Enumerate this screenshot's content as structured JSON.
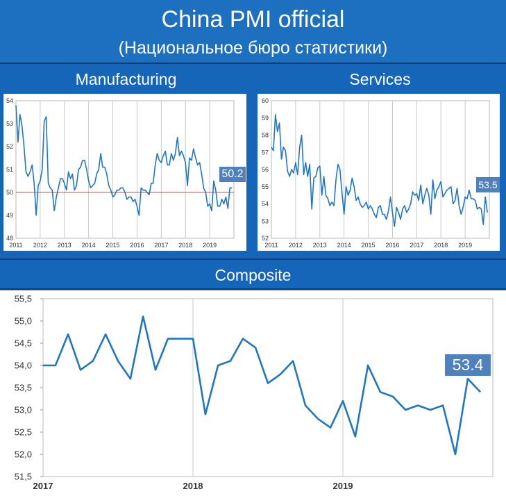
{
  "header": {
    "title": "China PMI official",
    "subtitle": "(Национальное бюро статистики)"
  },
  "sections": {
    "manufacturing": "Manufacturing",
    "services": "Services",
    "composite": "Composite"
  },
  "colors": {
    "background": "#1565b8",
    "line": "#1f77c4",
    "badge": "#4f81bd",
    "reference_line": "#c0504d"
  },
  "chart_data": [
    {
      "type": "line",
      "name": "manufacturing",
      "xlabels": [
        "2011",
        "2012",
        "2013",
        "2014",
        "2015",
        "2016",
        "2017",
        "2018",
        "2019"
      ],
      "xlim": [
        2011,
        2020
      ],
      "ylim": [
        48,
        54
      ],
      "yticks": [
        "48",
        "49",
        "50",
        "51",
        "52",
        "53",
        "54"
      ],
      "reference_y": 50,
      "latest_value": "50.2",
      "grid": "vertical",
      "x": [
        2011.0,
        2011.083,
        2011.167,
        2011.25,
        2011.333,
        2011.417,
        2011.5,
        2011.583,
        2011.667,
        2011.75,
        2011.833,
        2011.917,
        2012.0,
        2012.083,
        2012.167,
        2012.25,
        2012.333,
        2012.417,
        2012.5,
        2012.583,
        2012.667,
        2012.75,
        2012.833,
        2012.917,
        2013.0,
        2013.083,
        2013.167,
        2013.25,
        2013.333,
        2013.417,
        2013.5,
        2013.583,
        2013.667,
        2013.75,
        2013.833,
        2013.917,
        2014.0,
        2014.083,
        2014.167,
        2014.25,
        2014.333,
        2014.417,
        2014.5,
        2014.583,
        2014.667,
        2014.75,
        2014.833,
        2014.917,
        2015.0,
        2015.083,
        2015.167,
        2015.25,
        2015.333,
        2015.417,
        2015.5,
        2015.583,
        2015.667,
        2015.75,
        2015.833,
        2015.917,
        2016.0,
        2016.083,
        2016.167,
        2016.25,
        2016.333,
        2016.417,
        2016.5,
        2016.583,
        2016.667,
        2016.75,
        2016.833,
        2016.917,
        2017.0,
        2017.083,
        2017.167,
        2017.25,
        2017.333,
        2017.417,
        2017.5,
        2017.583,
        2017.667,
        2017.75,
        2017.833,
        2017.917,
        2018.0,
        2018.083,
        2018.167,
        2018.25,
        2018.333,
        2018.417,
        2018.5,
        2018.583,
        2018.667,
        2018.75,
        2018.833,
        2018.917,
        2019.0,
        2019.083,
        2019.167,
        2019.25,
        2019.333,
        2019.417,
        2019.5,
        2019.583,
        2019.667,
        2019.75,
        2019.833,
        2019.917
      ],
      "values": [
        53.8,
        52.2,
        53.4,
        52.9,
        52.0,
        50.9,
        50.7,
        50.9,
        51.2,
        50.4,
        49.0,
        50.3,
        50.5,
        51.0,
        53.1,
        53.3,
        50.4,
        50.2,
        50.1,
        49.2,
        49.8,
        50.2,
        50.6,
        50.6,
        50.4,
        50.1,
        50.9,
        50.6,
        50.8,
        50.1,
        50.3,
        51.0,
        51.1,
        51.4,
        51.4,
        51.0,
        50.5,
        50.2,
        50.3,
        50.4,
        50.8,
        51.0,
        51.7,
        51.1,
        51.1,
        50.8,
        50.3,
        50.1,
        49.8,
        49.9,
        50.1,
        50.1,
        50.2,
        50.2,
        50.0,
        49.7,
        49.8,
        49.8,
        49.6,
        49.7,
        49.4,
        49.0,
        50.2,
        50.1,
        50.1,
        50.0,
        49.9,
        50.4,
        50.4,
        51.2,
        51.7,
        51.4,
        51.3,
        51.6,
        51.8,
        51.2,
        51.2,
        51.7,
        51.4,
        51.7,
        52.4,
        51.6,
        51.8,
        51.6,
        51.3,
        50.3,
        51.5,
        51.4,
        51.9,
        51.5,
        51.2,
        51.3,
        50.8,
        50.2,
        50.0,
        49.4,
        49.5,
        49.2,
        50.5,
        50.1,
        49.4,
        49.4,
        49.7,
        49.5,
        49.8,
        49.3,
        50.2,
        50.2
      ]
    },
    {
      "type": "line",
      "name": "services",
      "xlabels": [
        "2011",
        "2012",
        "2013",
        "2014",
        "2015",
        "2016",
        "2017",
        "2018",
        "2019"
      ],
      "xlim": [
        2011,
        2020
      ],
      "ylim": [
        52,
        60
      ],
      "yticks": [
        "52",
        "53",
        "54",
        "55",
        "56",
        "57",
        "58",
        "59",
        "60"
      ],
      "latest_value": "53.5",
      "grid": "vertical",
      "x": [
        2011.0,
        2011.083,
        2011.167,
        2011.25,
        2011.333,
        2011.417,
        2011.5,
        2011.583,
        2011.667,
        2011.75,
        2011.833,
        2011.917,
        2012.0,
        2012.083,
        2012.167,
        2012.25,
        2012.333,
        2012.417,
        2012.5,
        2012.583,
        2012.667,
        2012.75,
        2012.833,
        2012.917,
        2013.0,
        2013.083,
        2013.167,
        2013.25,
        2013.333,
        2013.417,
        2013.5,
        2013.583,
        2013.667,
        2013.75,
        2013.833,
        2013.917,
        2014.0,
        2014.083,
        2014.167,
        2014.25,
        2014.333,
        2014.417,
        2014.5,
        2014.583,
        2014.667,
        2014.75,
        2014.833,
        2014.917,
        2015.0,
        2015.083,
        2015.167,
        2015.25,
        2015.333,
        2015.417,
        2015.5,
        2015.583,
        2015.667,
        2015.75,
        2015.833,
        2015.917,
        2016.0,
        2016.083,
        2016.167,
        2016.25,
        2016.333,
        2016.417,
        2016.5,
        2016.583,
        2016.667,
        2016.75,
        2016.833,
        2016.917,
        2017.0,
        2017.083,
        2017.167,
        2017.25,
        2017.333,
        2017.417,
        2017.5,
        2017.583,
        2017.667,
        2017.75,
        2017.833,
        2017.917,
        2018.0,
        2018.083,
        2018.167,
        2018.25,
        2018.333,
        2018.417,
        2018.5,
        2018.583,
        2018.667,
        2018.75,
        2018.833,
        2018.917,
        2019.0,
        2019.083,
        2019.167,
        2019.25,
        2019.333,
        2019.417,
        2019.5,
        2019.583,
        2019.667,
        2019.75,
        2019.833,
        2019.917
      ],
      "values": [
        57.3,
        57.1,
        59.2,
        58.2,
        58.7,
        56.6,
        57.3,
        57.1,
        55.9,
        55.6,
        56.0,
        55.8,
        56.4,
        55.7,
        57.3,
        58.0,
        55.7,
        56.4,
        55.6,
        56.3,
        53.7,
        55.5,
        55.6,
        56.1,
        56.2,
        54.5,
        55.6,
        54.5,
        54.3,
        53.9,
        54.1,
        53.9,
        55.4,
        56.3,
        56.0,
        54.6,
        53.4,
        55.0,
        54.5,
        54.8,
        55.5,
        55.0,
        54.2,
        54.4,
        54.0,
        53.8,
        53.9,
        54.1,
        53.7,
        53.9,
        53.7,
        53.4,
        53.2,
        53.8,
        53.9,
        53.4,
        53.4,
        53.1,
        53.6,
        54.4,
        53.5,
        52.7,
        53.8,
        53.5,
        53.1,
        53.7,
        53.9,
        53.5,
        53.7,
        54.0,
        54.7,
        54.5,
        54.6,
        54.2,
        55.1,
        54.0,
        54.5,
        54.9,
        54.5,
        53.4,
        55.4,
        54.3,
        54.8,
        55.0,
        55.3,
        54.4,
        54.6,
        54.8,
        54.9,
        55.0,
        54.0,
        54.2,
        54.9,
        53.9,
        53.4,
        53.8,
        54.4,
        54.3,
        54.8,
        54.3,
        54.3,
        54.2,
        53.7,
        53.8,
        53.7,
        52.8,
        54.4,
        53.5
      ]
    },
    {
      "type": "line",
      "name": "composite",
      "xlabels": [
        "2017",
        "2018",
        "2019"
      ],
      "xlim": [
        2017,
        2020
      ],
      "ylim": [
        51.5,
        55.5
      ],
      "yticks": [
        "51,5",
        "52,0",
        "52,5",
        "53,0",
        "53,5",
        "54,0",
        "54,5",
        "55,0",
        "55,5"
      ],
      "latest_value": "53.4",
      "grid": "vertical",
      "x": [
        2017.0,
        2017.083,
        2017.167,
        2017.25,
        2017.333,
        2017.417,
        2017.5,
        2017.583,
        2017.667,
        2017.75,
        2017.833,
        2017.917,
        2018.0,
        2018.083,
        2018.167,
        2018.25,
        2018.333,
        2018.417,
        2018.5,
        2018.583,
        2018.667,
        2018.75,
        2018.833,
        2018.917,
        2019.0,
        2019.083,
        2019.167,
        2019.25,
        2019.333,
        2019.417,
        2019.5,
        2019.583,
        2019.667,
        2019.75,
        2019.833,
        2019.917
      ],
      "values": [
        54.0,
        54.0,
        54.7,
        53.9,
        54.1,
        54.7,
        54.1,
        53.7,
        55.1,
        53.9,
        54.6,
        54.6,
        54.6,
        52.9,
        54.0,
        54.1,
        54.6,
        54.4,
        53.6,
        53.8,
        54.1,
        53.1,
        52.8,
        52.6,
        53.2,
        52.4,
        54.0,
        53.4,
        53.3,
        53.0,
        53.1,
        53.0,
        53.1,
        52.0,
        53.7,
        53.4
      ]
    }
  ]
}
